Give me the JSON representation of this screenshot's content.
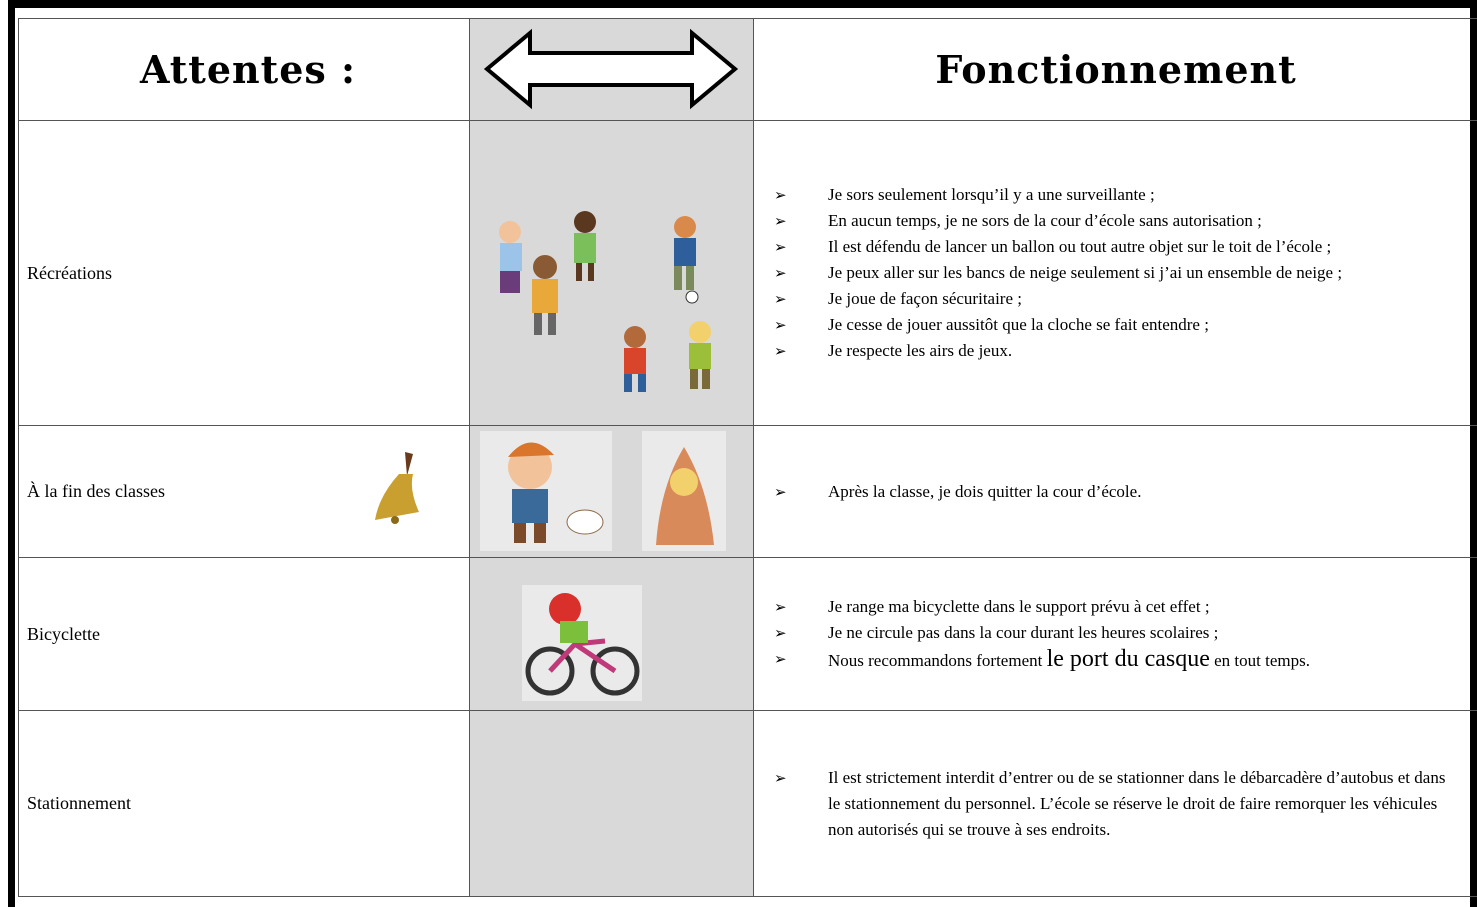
{
  "table": {
    "header": [
      "Attentes :",
      "Fonctionnement"
    ],
    "rows": [
      {
        "label": "Récréations",
        "items": [
          "Je sors seulement lorsqu’il y a une surveillante ;",
          "En aucun temps, je ne sors de la cour d’école sans autorisation ;",
          "Il est défendu de lancer un ballon ou tout autre objet sur le toit de l’école ;",
          "Je peux aller sur les bancs de neige seulement si j’ai un ensemble de neige ;",
          "Je joue de façon sécuritaire ;",
          "Je cesse de jouer aussitôt que la cloche se fait entendre ;",
          "Je respecte les airs de jeux."
        ]
      },
      {
        "label": "À la fin des classes",
        "items": [
          "Après la classe, je dois quitter la cour d’école."
        ]
      },
      {
        "label": "Bicyclette",
        "items": [
          "Je range ma bicyclette dans le support prévu à cet effet ;",
          "Je ne circule pas dans la cour durant les heures scolaires ;",
          [
            "Nous recommandons fortement ",
            "le port du casque",
            " en tout temps."
          ]
        ]
      },
      {
        "label": "Stationnement",
        "items": [
          "Il est strictement interdit d’entrer ou de se stationner dans le débarcadère d’autobus et dans le stationnement du personnel. L’école se réserve le droit de faire remorquer les véhicules non autorisés qui se trouve à ses endroits."
        ]
      }
    ]
  }
}
